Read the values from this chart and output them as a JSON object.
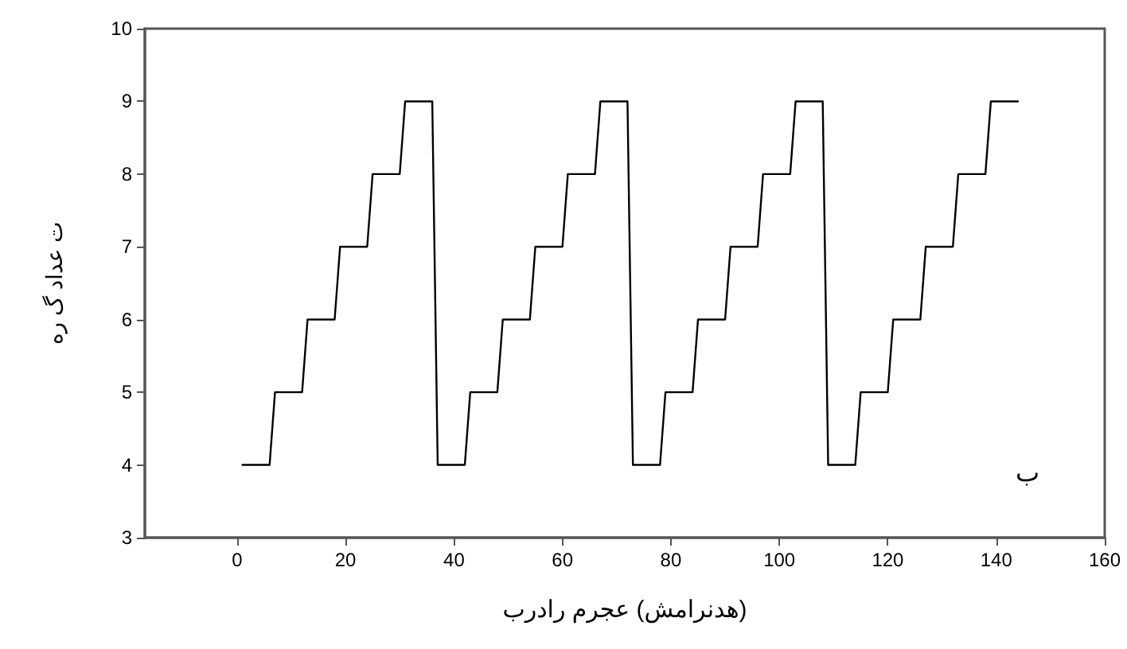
{
  "chart_data": {
    "type": "line",
    "xlabel": "هدنرامش) عجرم رادرب)",
    "ylabel": "ت عداد گ ره",
    "annotations": [
      "ب"
    ],
    "x": [
      1,
      6,
      7,
      12,
      13,
      18,
      19,
      24,
      25,
      30,
      31,
      36,
      37,
      42,
      43,
      48,
      49,
      54,
      55,
      60,
      61,
      66,
      67,
      72,
      73,
      78,
      79,
      84,
      85,
      90,
      91,
      96,
      97,
      102,
      103,
      108,
      109,
      114,
      115,
      120,
      121,
      126,
      127,
      132,
      133,
      138,
      139,
      144
    ],
    "series": [
      {
        "color": "#000000",
        "values": [
          4,
          4,
          5,
          5,
          6,
          6,
          7,
          7,
          8,
          8,
          9,
          9,
          4,
          4,
          5,
          5,
          6,
          6,
          7,
          7,
          8,
          8,
          9,
          9,
          4,
          4,
          5,
          5,
          6,
          6,
          7,
          7,
          8,
          8,
          9,
          9,
          4,
          4,
          5,
          5,
          6,
          6,
          7,
          7,
          8,
          8,
          9,
          9
        ]
      }
    ],
    "xlim": [
      -17,
      160
    ],
    "xticks": [
      0,
      20,
      40,
      60,
      80,
      100,
      120,
      140,
      160
    ],
    "ylim": [
      3,
      10
    ],
    "yticks": [
      3,
      4,
      5,
      6,
      7,
      8,
      9,
      10
    ],
    "grid": false,
    "marker": "none",
    "line_style": "solid"
  }
}
